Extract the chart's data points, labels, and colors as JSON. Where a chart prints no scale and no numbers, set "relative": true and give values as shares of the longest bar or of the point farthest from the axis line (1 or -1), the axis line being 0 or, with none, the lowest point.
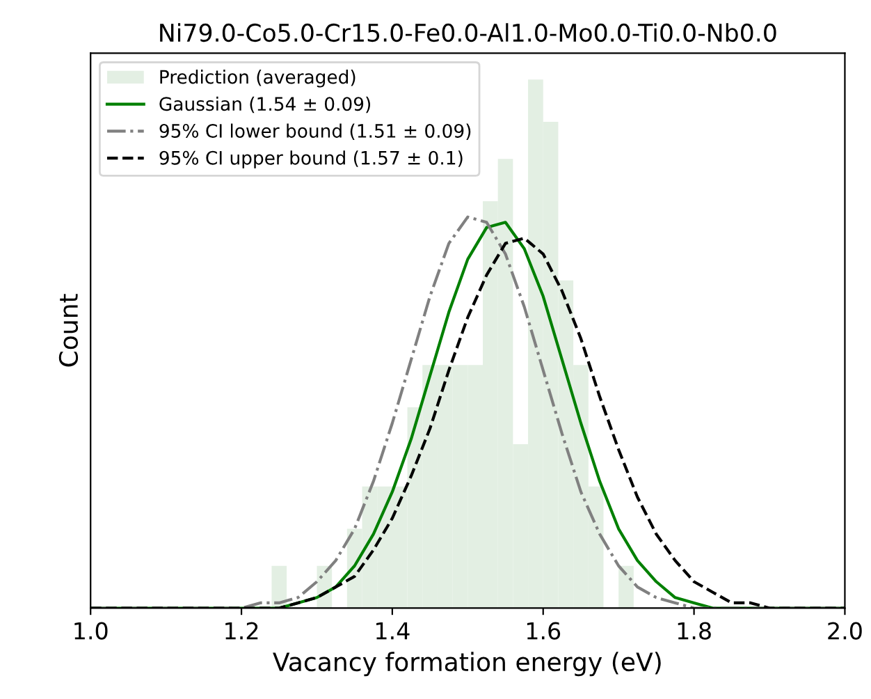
{
  "chart_data": {
    "type": "histogram",
    "title": "Ni79.0-Co5.0-Cr15.0-Fe0.0-Al1.0-Mo0.0-Ti0.0-Nb0.0",
    "xlabel": "Vacancy formation energy (eV)",
    "ylabel": "Count",
    "relative": true,
    "bins": [
      1.24,
      1.26,
      1.28,
      1.3,
      1.32,
      1.34,
      1.36,
      1.38,
      1.4,
      1.42,
      1.44,
      1.46,
      1.48,
      1.5,
      1.52,
      1.54,
      1.56,
      1.58,
      1.6,
      1.62,
      1.64,
      1.66,
      1.68,
      1.7,
      1.72
    ],
    "xlim": [
      1.0,
      2.0
    ],
    "xticks": [
      {
        "value": 1.0,
        "label": "1.0"
      },
      {
        "value": 1.2,
        "label": "1.2"
      },
      {
        "value": 1.4,
        "label": "1.4"
      },
      {
        "value": 1.6,
        "label": "1.6"
      },
      {
        "value": 1.8,
        "label": "1.8"
      },
      {
        "value": 2.0,
        "label": "2.0"
      }
    ],
    "grid": false,
    "legend": "top left",
    "series": [
      {
        "name": "Prediction (averaged)",
        "color": "#e3efe3",
        "values": [
          0.08,
          0,
          0,
          0.08,
          0,
          0.15,
          0.23,
          0.23,
          0.23,
          0.38,
          0.46,
          0.46,
          0.46,
          0.46,
          0.77,
          0.85,
          0.31,
          1,
          0.92,
          0.62,
          0.46,
          0.23,
          0,
          0.08
        ]
      },
      {
        "type": "line",
        "name": "Gaussian (1.54 ± 0.09)",
        "color": "#008000",
        "line_style": "solid",
        "x": [
          1.0,
          1.2,
          1.225,
          1.25,
          1.275,
          1.3,
          1.325,
          1.35,
          1.375,
          1.4,
          1.425,
          1.45,
          1.475,
          1.5,
          1.525,
          1.55,
          1.575,
          1.6,
          1.625,
          1.65,
          1.675,
          1.7,
          1.725,
          1.75,
          1.775,
          1.8,
          1.825,
          1.85,
          1.875,
          1.9,
          2.0
        ],
        "values": [
          0,
          0,
          0,
          0,
          0.01,
          0.02,
          0.04,
          0.08,
          0.14,
          0.22,
          0.32,
          0.44,
          0.56,
          0.66,
          0.72,
          0.73,
          0.68,
          0.59,
          0.47,
          0.35,
          0.24,
          0.15,
          0.09,
          0.05,
          0.02,
          0.01,
          0,
          0,
          0,
          0,
          0
        ]
      },
      {
        "type": "line",
        "name": "95% CI lower bound (1.51 ± 0.09)",
        "color": "#808080",
        "line_style": "dashdot",
        "x": [
          1.0,
          1.2,
          1.225,
          1.25,
          1.275,
          1.3,
          1.325,
          1.35,
          1.375,
          1.4,
          1.425,
          1.45,
          1.475,
          1.5,
          1.525,
          1.55,
          1.575,
          1.6,
          1.625,
          1.65,
          1.675,
          1.7,
          1.725,
          1.75,
          1.775,
          1.8,
          1.825,
          1.85,
          1.875,
          1.9,
          2.0
        ],
        "values": [
          0,
          0,
          0.01,
          0.01,
          0.02,
          0.05,
          0.09,
          0.15,
          0.24,
          0.35,
          0.47,
          0.59,
          0.69,
          0.74,
          0.73,
          0.67,
          0.57,
          0.45,
          0.33,
          0.22,
          0.14,
          0.08,
          0.04,
          0.02,
          0.01,
          0,
          0,
          0,
          0,
          0,
          0
        ]
      },
      {
        "type": "line",
        "name": "95% CI upper bound (1.57 ± 0.1)",
        "color": "#000000",
        "line_style": "dashed",
        "x": [
          1.0,
          1.2,
          1.225,
          1.25,
          1.275,
          1.3,
          1.325,
          1.35,
          1.375,
          1.4,
          1.425,
          1.45,
          1.475,
          1.5,
          1.525,
          1.55,
          1.575,
          1.6,
          1.625,
          1.65,
          1.675,
          1.7,
          1.725,
          1.75,
          1.775,
          1.8,
          1.825,
          1.85,
          1.875,
          1.9,
          2.0
        ],
        "values": [
          0,
          0,
          0,
          0,
          0.01,
          0.02,
          0.04,
          0.06,
          0.11,
          0.17,
          0.25,
          0.34,
          0.45,
          0.55,
          0.63,
          0.69,
          0.7,
          0.67,
          0.6,
          0.51,
          0.4,
          0.3,
          0.21,
          0.14,
          0.09,
          0.05,
          0.03,
          0.01,
          0.01,
          0,
          0
        ]
      }
    ]
  }
}
